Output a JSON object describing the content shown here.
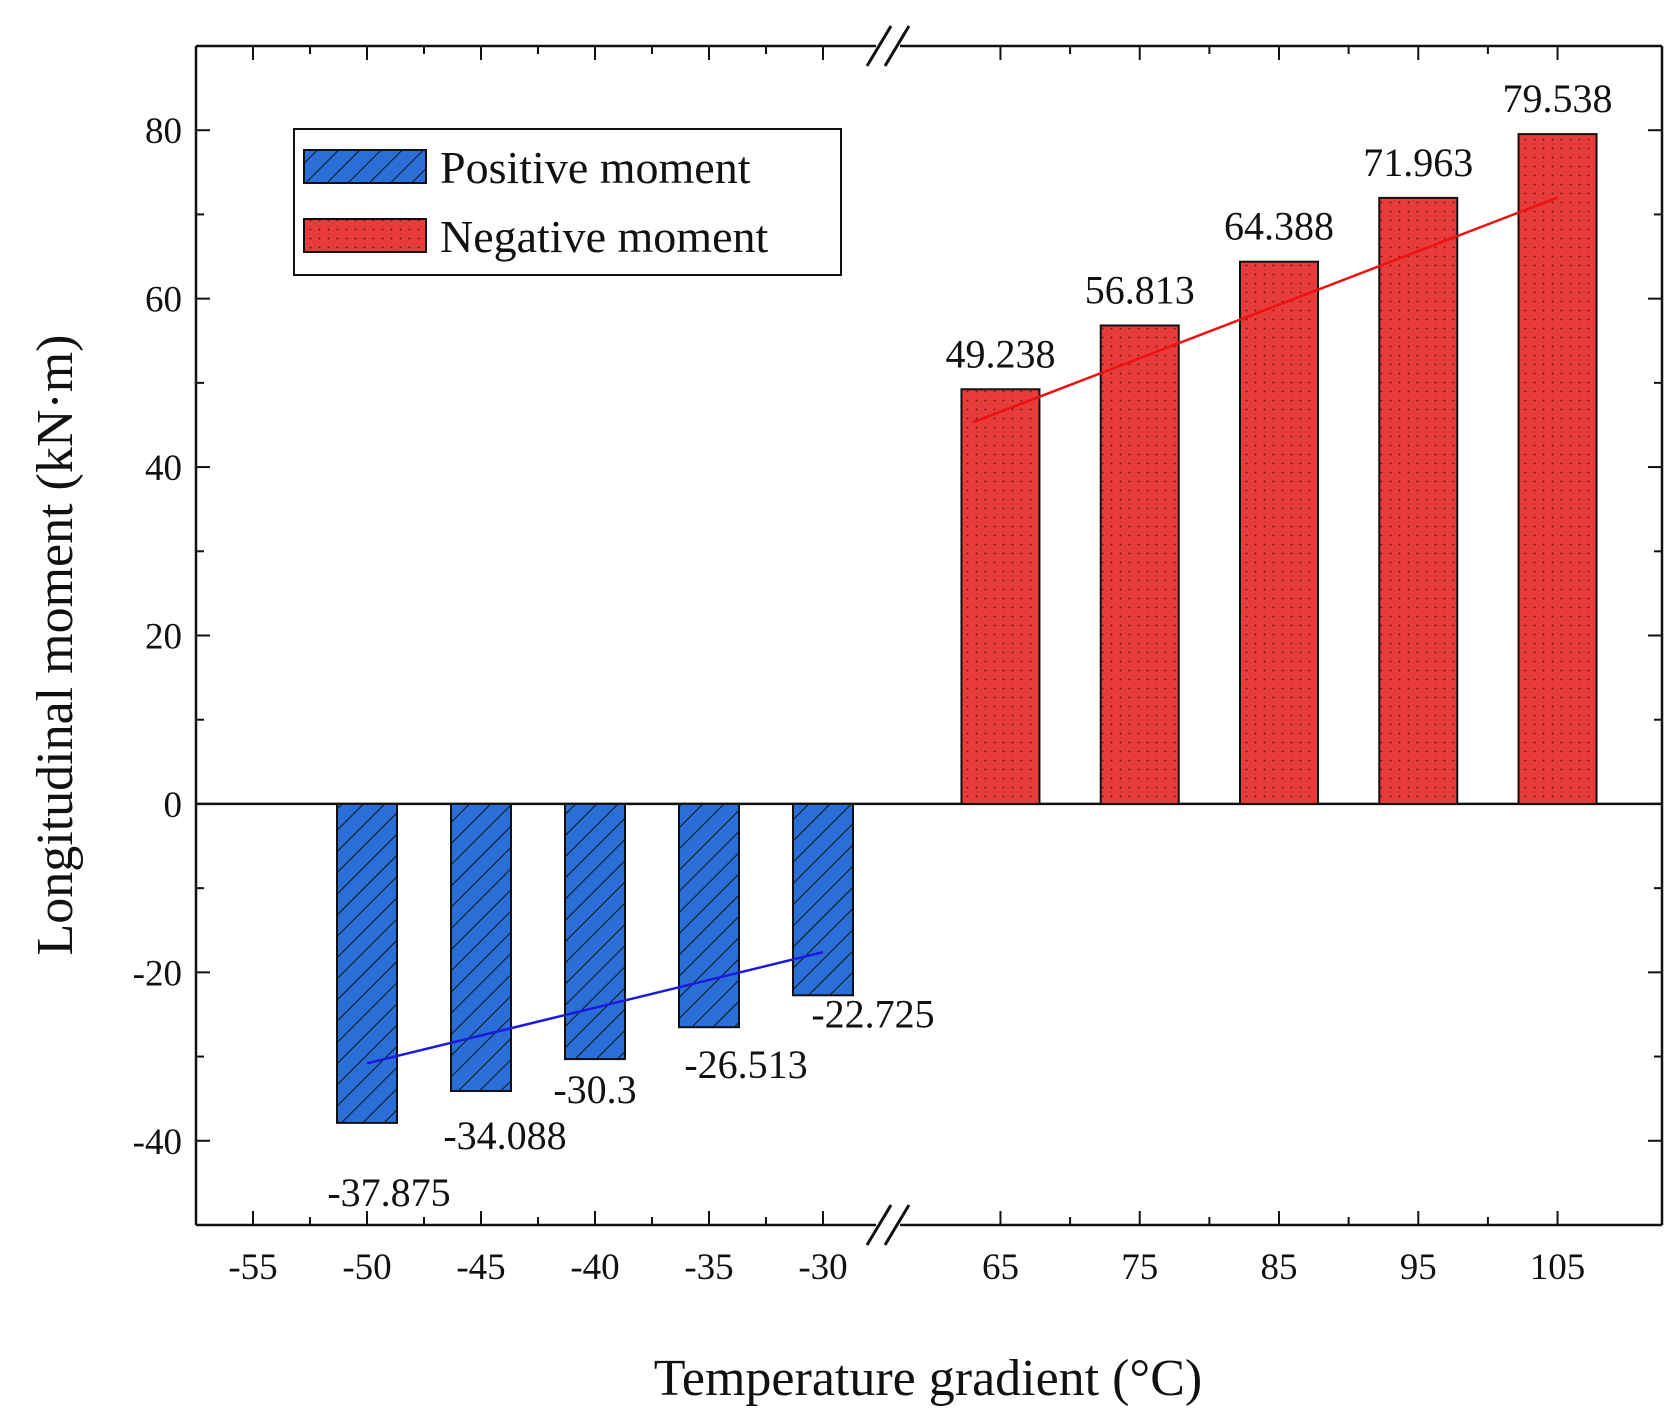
{
  "chart_data": {
    "type": "bar",
    "xlabel": "Temperature gradient (°C)",
    "ylabel": "Longitudinal moment (kN·m)",
    "ylim": [
      -50,
      90
    ],
    "yticks": [
      -40,
      -20,
      0,
      20,
      40,
      60,
      80
    ],
    "grid": false,
    "axis_break": "between -30 and 65 on the x axis",
    "x_segments": [
      {
        "range": [
          -57.5,
          -27.5
        ],
        "ticks": [
          "-55",
          "-50",
          "-45",
          "-40",
          "-35",
          "-30"
        ],
        "tick_values": [
          -55,
          -50,
          -45,
          -40,
          -35,
          -30
        ]
      },
      {
        "range": [
          57.5,
          112.5
        ],
        "ticks": [
          "65",
          "75",
          "85",
          "95",
          "105"
        ],
        "tick_values": [
          65,
          75,
          85,
          95,
          105
        ]
      }
    ],
    "legend": {
      "placement": "top-left",
      "entries": [
        "Positive moment",
        "Negative moment"
      ]
    },
    "series": [
      {
        "name": "Positive moment",
        "color": "#2a6fd8",
        "pattern": "diagonal-hatch",
        "x": [
          -50,
          -45,
          -40,
          -35,
          -30
        ],
        "values": [
          -37.875,
          -34.088,
          -30.3,
          -26.513,
          -22.725
        ],
        "labels": [
          "-37.875",
          "-34.088",
          "-30.3",
          "-26.513",
          "-22.725"
        ],
        "trendline": {
          "color": "#1a1adc",
          "from": [
            -50,
            -30.8
          ],
          "to": [
            -30,
            -17.6
          ]
        }
      },
      {
        "name": "Negative moment",
        "color": "#e83c3c",
        "pattern": "dots",
        "x": [
          65,
          75,
          85,
          95,
          105
        ],
        "values": [
          49.238,
          56.813,
          64.388,
          71.963,
          79.538
        ],
        "labels": [
          "49.238",
          "56.813",
          "64.388",
          "71.963",
          "79.538"
        ],
        "trendline": {
          "color": "#ee1111",
          "from": [
            63,
            45.3
          ],
          "to": [
            105,
            72
          ]
        }
      }
    ]
  }
}
